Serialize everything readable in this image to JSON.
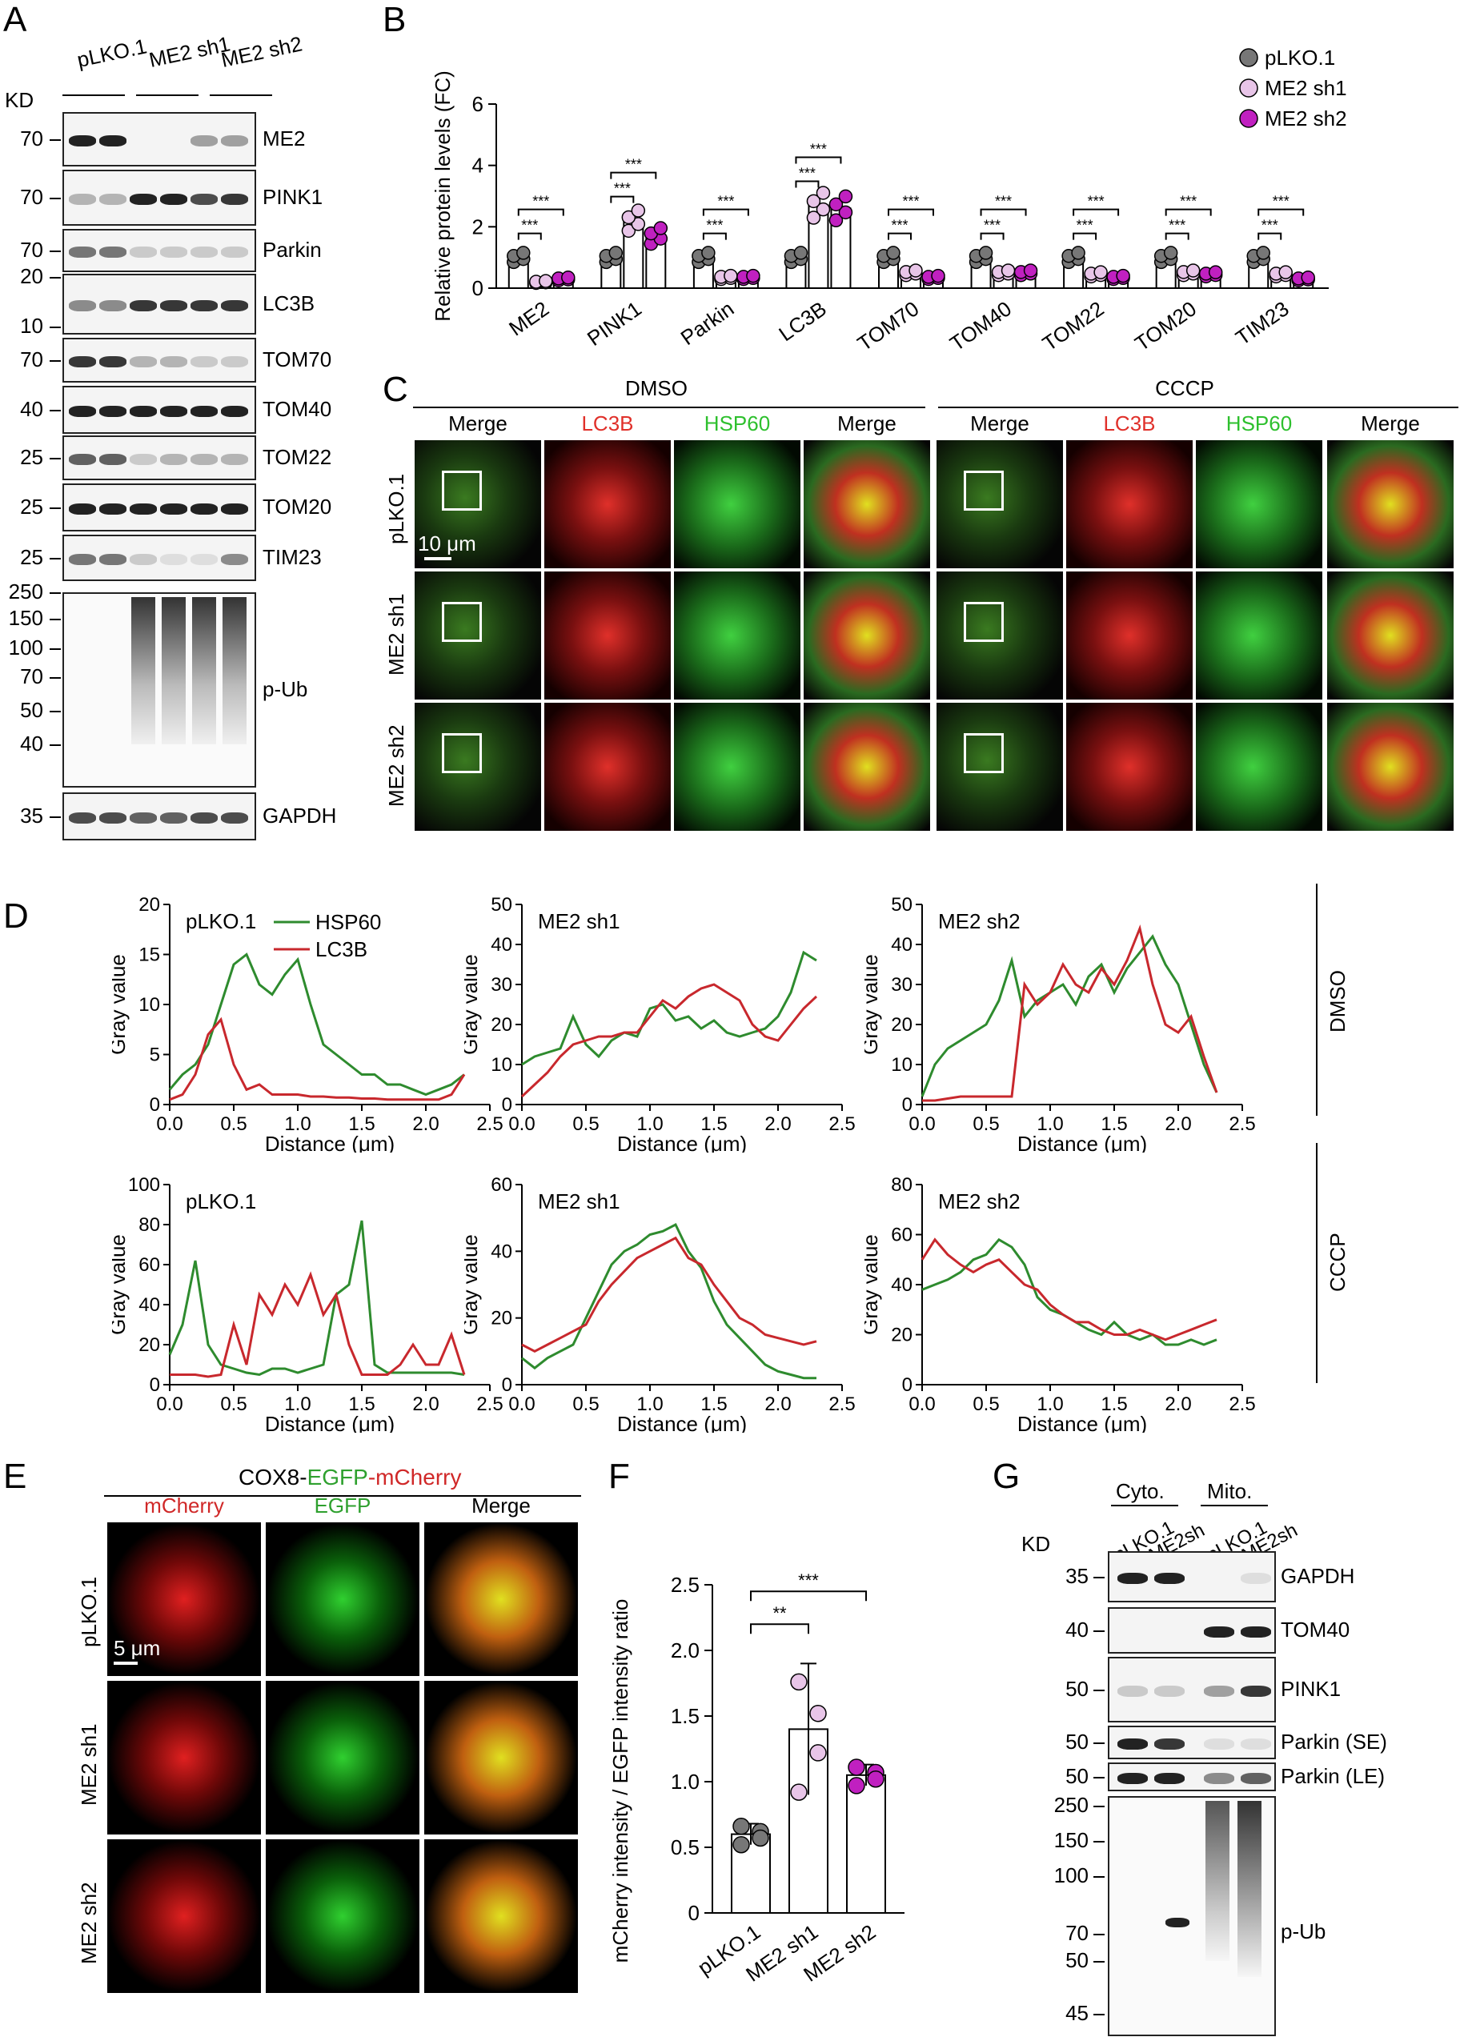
{
  "panels": {
    "A": "A",
    "B": "B",
    "C": "C",
    "D": "D",
    "E": "E",
    "F": "F",
    "G": "G"
  },
  "panelA": {
    "kd_label": "KD",
    "groups": [
      "pLKO.1",
      "ME2 sh1",
      "ME2 sh2"
    ],
    "blots": [
      {
        "name": "ME2",
        "kd": [
          "70"
        ]
      },
      {
        "name": "PINK1",
        "kd": [
          "70"
        ]
      },
      {
        "name": "Parkin",
        "kd": [
          "70"
        ]
      },
      {
        "name": "LC3B",
        "kd": [
          "20",
          "10"
        ]
      },
      {
        "name": "TOM70",
        "kd": [
          "70"
        ]
      },
      {
        "name": "TOM40",
        "kd": [
          "40"
        ]
      },
      {
        "name": "TOM22",
        "kd": [
          "25"
        ]
      },
      {
        "name": "TOM20",
        "kd": [
          "25"
        ]
      },
      {
        "name": "TIM23",
        "kd": [
          "25"
        ]
      },
      {
        "name": "p-Ub",
        "kd": [
          "250",
          "150",
          "100",
          "70",
          "50",
          "40"
        ]
      },
      {
        "name": "GAPDH",
        "kd": [
          "35"
        ]
      }
    ]
  },
  "chart_data": [
    {
      "panel": "B",
      "type": "bar",
      "ylabel": "Relative protein levels (FC)",
      "ylim": [
        0,
        6
      ],
      "yticks": [
        "0",
        "2",
        "4",
        "6"
      ],
      "categories": [
        "ME2",
        "PINK1",
        "Parkin",
        "LC3B",
        "TOM70",
        "TOM40",
        "TOM22",
        "TOM20",
        "TIM23"
      ],
      "series": [
        {
          "name": "pLKO.1",
          "color": "#777777",
          "values": [
            1.0,
            1.0,
            1.0,
            1.0,
            1.0,
            1.0,
            1.0,
            1.0,
            1.0
          ]
        },
        {
          "name": "ME2 sh1",
          "color": "#e8c5e8",
          "values": [
            0.2,
            2.2,
            0.35,
            2.7,
            0.5,
            0.5,
            0.45,
            0.5,
            0.45
          ]
        },
        {
          "name": "ME2 sh2",
          "color": "#c020c0",
          "values": [
            0.3,
            1.7,
            0.35,
            2.6,
            0.35,
            0.5,
            0.35,
            0.45,
            0.3
          ]
        }
      ],
      "significance": [
        "***",
        "***"
      ],
      "legend": "top-right"
    },
    {
      "panel": "D",
      "type": "line",
      "title": "pLKO.1",
      "condition": "DMSO",
      "xlabel": "Distance (μm)",
      "ylabel": "Gray value",
      "xlim": [
        0,
        2.5
      ],
      "ylim": [
        0,
        20
      ],
      "xticks": [
        "0.0",
        "0.5",
        "1.0",
        "1.5",
        "2.0",
        "2.5"
      ],
      "yticks": [
        "0",
        "5",
        "10",
        "15",
        "20"
      ],
      "series": [
        {
          "name": "HSP60",
          "color": "#2e8b2e",
          "x": [
            0,
            0.1,
            0.2,
            0.3,
            0.4,
            0.5,
            0.6,
            0.7,
            0.8,
            0.9,
            1.0,
            1.1,
            1.2,
            1.3,
            1.4,
            1.5,
            1.6,
            1.7,
            1.8,
            1.9,
            2.0,
            2.1,
            2.2,
            2.3
          ],
          "y": [
            1.5,
            3,
            4,
            6,
            10,
            14,
            15,
            12,
            11,
            13,
            14.5,
            10,
            6,
            5,
            4,
            3,
            3,
            2,
            2,
            1.5,
            1,
            1.5,
            2,
            3
          ]
        },
        {
          "name": "LC3B",
          "color": "#c8282d",
          "x": [
            0,
            0.1,
            0.2,
            0.3,
            0.4,
            0.5,
            0.6,
            0.7,
            0.8,
            0.9,
            1.0,
            1.1,
            1.2,
            1.3,
            1.4,
            1.5,
            1.6,
            1.7,
            1.8,
            1.9,
            2.0,
            2.1,
            2.2,
            2.3
          ],
          "y": [
            0.5,
            1,
            3,
            7,
            8.5,
            4,
            1.5,
            2,
            1,
            1,
            1,
            0.8,
            0.8,
            0.7,
            0.7,
            0.6,
            0.6,
            0.5,
            0.5,
            0.5,
            0.5,
            0.5,
            1,
            3
          ]
        }
      ]
    },
    {
      "panel": "D",
      "type": "line",
      "title": "ME2 sh1",
      "condition": "DMSO",
      "xlabel": "Distance (μm)",
      "ylabel": "Gray value",
      "xlim": [
        0,
        2.5
      ],
      "ylim": [
        0,
        50
      ],
      "xticks": [
        "0.0",
        "0.5",
        "1.0",
        "1.5",
        "2.0",
        "2.5"
      ],
      "yticks": [
        "0",
        "10",
        "20",
        "30",
        "40",
        "50"
      ],
      "series": [
        {
          "name": "HSP60",
          "color": "#2e8b2e",
          "x": [
            0,
            0.1,
            0.2,
            0.3,
            0.4,
            0.5,
            0.6,
            0.7,
            0.8,
            0.9,
            1.0,
            1.1,
            1.2,
            1.3,
            1.4,
            1.5,
            1.6,
            1.7,
            1.8,
            1.9,
            2.0,
            2.1,
            2.2,
            2.3
          ],
          "y": [
            10,
            12,
            13,
            14,
            22,
            15,
            12,
            16,
            18,
            17,
            24,
            25,
            21,
            22,
            19,
            21,
            18,
            17,
            18,
            19,
            22,
            28,
            38,
            36
          ]
        },
        {
          "name": "LC3B",
          "color": "#c8282d",
          "x": [
            0,
            0.1,
            0.2,
            0.3,
            0.4,
            0.5,
            0.6,
            0.7,
            0.8,
            0.9,
            1.0,
            1.1,
            1.2,
            1.3,
            1.4,
            1.5,
            1.6,
            1.7,
            1.8,
            1.9,
            2.0,
            2.1,
            2.2,
            2.3
          ],
          "y": [
            2,
            5,
            8,
            12,
            15,
            16,
            17,
            17,
            18,
            18,
            22,
            26,
            24,
            27,
            29,
            30,
            28,
            26,
            20,
            17,
            16,
            20,
            24,
            27
          ]
        }
      ]
    },
    {
      "panel": "D",
      "type": "line",
      "title": "ME2 sh2",
      "condition": "DMSO",
      "xlabel": "Distance (μm)",
      "ylabel": "Gray value",
      "xlim": [
        0,
        2.5
      ],
      "ylim": [
        0,
        50
      ],
      "xticks": [
        "0.0",
        "0.5",
        "1.0",
        "1.5",
        "2.0",
        "2.5"
      ],
      "yticks": [
        "0",
        "10",
        "20",
        "30",
        "40",
        "50"
      ],
      "series": [
        {
          "name": "HSP60",
          "color": "#2e8b2e",
          "x": [
            0,
            0.1,
            0.2,
            0.3,
            0.4,
            0.5,
            0.6,
            0.7,
            0.8,
            0.9,
            1.0,
            1.1,
            1.2,
            1.3,
            1.4,
            1.5,
            1.6,
            1.7,
            1.8,
            1.9,
            2.0,
            2.1,
            2.2,
            2.3
          ],
          "y": [
            2,
            10,
            14,
            16,
            18,
            20,
            26,
            36,
            22,
            26,
            28,
            30,
            25,
            32,
            35,
            28,
            34,
            38,
            42,
            35,
            30,
            20,
            10,
            3
          ]
        },
        {
          "name": "LC3B",
          "color": "#c8282d",
          "x": [
            0,
            0.1,
            0.2,
            0.3,
            0.4,
            0.5,
            0.6,
            0.7,
            0.8,
            0.9,
            1.0,
            1.1,
            1.2,
            1.3,
            1.4,
            1.5,
            1.6,
            1.7,
            1.8,
            1.9,
            2.0,
            2.1,
            2.2,
            2.3
          ],
          "y": [
            1,
            1,
            1.5,
            2,
            2,
            2,
            2,
            2,
            30,
            25,
            28,
            35,
            30,
            28,
            34,
            30,
            36,
            44,
            30,
            20,
            18,
            22,
            12,
            3
          ]
        }
      ]
    },
    {
      "panel": "D",
      "type": "line",
      "title": "pLKO.1",
      "condition": "CCCP",
      "xlabel": "Distance (μm)",
      "ylabel": "Gray value",
      "xlim": [
        0,
        2.5
      ],
      "ylim": [
        0,
        100
      ],
      "xticks": [
        "0.0",
        "0.5",
        "1.0",
        "1.5",
        "2.0",
        "2.5"
      ],
      "yticks": [
        "0",
        "20",
        "40",
        "60",
        "80",
        "100"
      ],
      "series": [
        {
          "name": "HSP60",
          "color": "#2e8b2e",
          "x": [
            0,
            0.1,
            0.2,
            0.3,
            0.4,
            0.5,
            0.6,
            0.7,
            0.8,
            0.9,
            1.0,
            1.1,
            1.2,
            1.3,
            1.4,
            1.5,
            1.6,
            1.7,
            1.8,
            1.9,
            2.0,
            2.1,
            2.2,
            2.3
          ],
          "y": [
            15,
            30,
            62,
            20,
            10,
            8,
            6,
            5,
            8,
            8,
            6,
            8,
            10,
            45,
            50,
            82,
            10,
            6,
            6,
            6,
            6,
            6,
            6,
            5
          ]
        },
        {
          "name": "LC3B",
          "color": "#c8282d",
          "x": [
            0,
            0.1,
            0.2,
            0.3,
            0.4,
            0.5,
            0.6,
            0.7,
            0.8,
            0.9,
            1.0,
            1.1,
            1.2,
            1.3,
            1.4,
            1.5,
            1.6,
            1.7,
            1.8,
            1.9,
            2.0,
            2.1,
            2.2,
            2.3
          ],
          "y": [
            5,
            5,
            5,
            4,
            5,
            30,
            10,
            45,
            35,
            50,
            40,
            55,
            35,
            45,
            20,
            5,
            5,
            5,
            10,
            20,
            10,
            10,
            25,
            5
          ]
        }
      ]
    },
    {
      "panel": "D",
      "type": "line",
      "title": "ME2 sh1",
      "condition": "CCCP",
      "xlabel": "Distance (μm)",
      "ylabel": "Gray value",
      "xlim": [
        0,
        2.5
      ],
      "ylim": [
        0,
        60
      ],
      "xticks": [
        "0.0",
        "0.5",
        "1.0",
        "1.5",
        "2.0",
        "2.5"
      ],
      "yticks": [
        "0",
        "20",
        "40",
        "60"
      ],
      "series": [
        {
          "name": "HSP60",
          "color": "#2e8b2e",
          "x": [
            0,
            0.1,
            0.2,
            0.3,
            0.4,
            0.5,
            0.6,
            0.7,
            0.8,
            0.9,
            1.0,
            1.1,
            1.2,
            1.3,
            1.4,
            1.5,
            1.6,
            1.7,
            1.8,
            1.9,
            2.0,
            2.1,
            2.2,
            2.3
          ],
          "y": [
            8,
            5,
            8,
            10,
            12,
            20,
            28,
            36,
            40,
            42,
            45,
            46,
            48,
            40,
            35,
            25,
            18,
            14,
            10,
            6,
            4,
            3,
            2,
            2
          ]
        },
        {
          "name": "LC3B",
          "color": "#c8282d",
          "x": [
            0,
            0.1,
            0.2,
            0.3,
            0.4,
            0.5,
            0.6,
            0.7,
            0.8,
            0.9,
            1.0,
            1.1,
            1.2,
            1.3,
            1.4,
            1.5,
            1.6,
            1.7,
            1.8,
            1.9,
            2.0,
            2.1,
            2.2,
            2.3
          ],
          "y": [
            12,
            10,
            12,
            14,
            16,
            18,
            25,
            30,
            34,
            38,
            40,
            42,
            44,
            38,
            36,
            30,
            25,
            20,
            18,
            15,
            14,
            13,
            12,
            13
          ]
        }
      ]
    },
    {
      "panel": "D",
      "type": "line",
      "title": "ME2 sh2",
      "condition": "CCCP",
      "xlabel": "Distance (μm)",
      "ylabel": "Gray value",
      "xlim": [
        0,
        2.5
      ],
      "ylim": [
        0,
        80
      ],
      "xticks": [
        "0.0",
        "0.5",
        "1.0",
        "1.5",
        "2.0",
        "2.5"
      ],
      "yticks": [
        "0",
        "20",
        "40",
        "60",
        "80"
      ],
      "series": [
        {
          "name": "HSP60",
          "color": "#2e8b2e",
          "x": [
            0,
            0.1,
            0.2,
            0.3,
            0.4,
            0.5,
            0.6,
            0.7,
            0.8,
            0.9,
            1.0,
            1.1,
            1.2,
            1.3,
            1.4,
            1.5,
            1.6,
            1.7,
            1.8,
            1.9,
            2.0,
            2.1,
            2.2,
            2.3
          ],
          "y": [
            38,
            40,
            42,
            45,
            50,
            52,
            58,
            55,
            48,
            35,
            30,
            28,
            25,
            22,
            20,
            25,
            20,
            18,
            20,
            16,
            16,
            18,
            16,
            18
          ]
        },
        {
          "name": "LC3B",
          "color": "#c8282d",
          "x": [
            0,
            0.1,
            0.2,
            0.3,
            0.4,
            0.5,
            0.6,
            0.7,
            0.8,
            0.9,
            1.0,
            1.1,
            1.2,
            1.3,
            1.4,
            1.5,
            1.6,
            1.7,
            1.8,
            1.9,
            2.0,
            2.1,
            2.2,
            2.3
          ],
          "y": [
            50,
            58,
            52,
            48,
            45,
            48,
            50,
            45,
            40,
            38,
            32,
            28,
            25,
            25,
            22,
            20,
            20,
            22,
            20,
            18,
            20,
            22,
            24,
            26
          ]
        }
      ]
    },
    {
      "panel": "F",
      "type": "bar",
      "ylabel": "mCherry intensity / EGFP intensity ratio",
      "ylim": [
        0,
        2.5
      ],
      "yticks": [
        "0",
        "0.5",
        "1.0",
        "1.5",
        "2.0",
        "2.5"
      ],
      "categories": [
        "pLKO.1",
        "ME2 sh1",
        "ME2 sh2"
      ],
      "values": [
        0.6,
        1.4,
        1.05
      ],
      "colors": [
        "#777777",
        "#e8c5e8",
        "#c020c0"
      ],
      "significance": [
        "**",
        "***"
      ]
    }
  ],
  "panelC": {
    "groups": [
      "DMSO",
      "CCCP"
    ],
    "columns": [
      "Merge",
      "LC3B",
      "HSP60",
      "Merge",
      "Merge",
      "LC3B",
      "HSP60",
      "Merge"
    ],
    "rows": [
      "pLKO.1",
      "ME2 sh1",
      "ME2 sh2"
    ],
    "scalebar": "10 μm",
    "colors": {
      "LC3B": "#e0302a",
      "HSP60": "#2ec02e"
    }
  },
  "panelD": {
    "legend": [
      "HSP60",
      "LC3B"
    ],
    "conditions": [
      "DMSO",
      "CCCP"
    ]
  },
  "panelE": {
    "title_parts": [
      "COX8-",
      "EGFP",
      "-mCherry"
    ],
    "columns": [
      "mCherry",
      "EGFP",
      "Merge"
    ],
    "rows": [
      "pLKO.1",
      "ME2 sh1",
      "ME2 sh2"
    ],
    "scalebar": "5 μm"
  },
  "panelG": {
    "kd_label": "KD",
    "groups": [
      "Cyto.",
      "Mito."
    ],
    "lanes": [
      "pLKO.1",
      "ME2sh",
      "pLKO.1",
      "ME2sh"
    ],
    "blots": [
      {
        "name": "GAPDH",
        "kd": [
          "35"
        ]
      },
      {
        "name": "TOM40",
        "kd": [
          "40"
        ]
      },
      {
        "name": "PINK1",
        "kd": [
          "50"
        ]
      },
      {
        "name": "Parkin (SE)",
        "kd": [
          "50"
        ]
      },
      {
        "name": "Parkin (LE)",
        "kd": [
          "50"
        ]
      },
      {
        "name": "p-Ub",
        "kd": [
          "250",
          "150",
          "100",
          "70",
          "50",
          "45"
        ]
      }
    ]
  }
}
